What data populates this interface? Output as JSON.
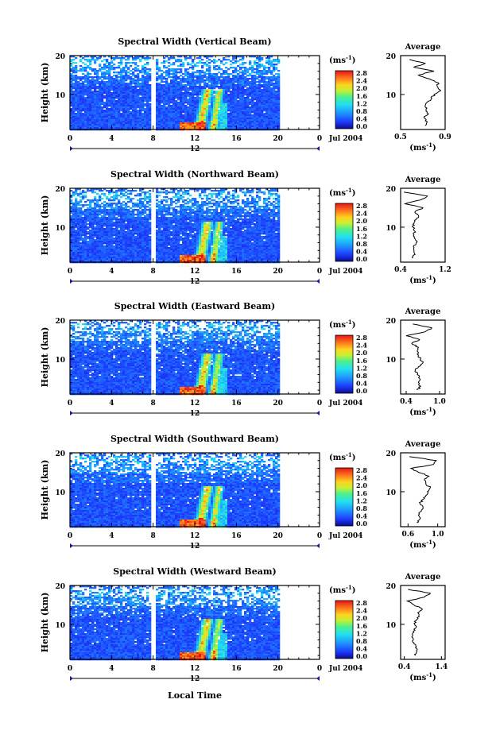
{
  "page": {
    "xlabel": "Local Time",
    "ylabel": "Height (km)",
    "avg_title": "Average",
    "cbar_title": "(ms",
    "cbar_title_exp": "-1",
    "cbar_title_close": ")",
    "avg_unit": "(ms",
    "avg_unit_exp": "-1",
    "avg_unit_close": ")",
    "date_label": "Jul 2004",
    "gap_time_label": "12",
    "x_ticks": [
      "0",
      "4",
      "8",
      "12",
      "16",
      "20",
      "0"
    ],
    "y_ticks": [
      "20",
      "10"
    ],
    "cbar_ticks": [
      "2.8",
      "2.4",
      "2.0",
      "1.6",
      "1.2",
      "0.8",
      "0.4",
      "0.0"
    ]
  },
  "chart_data": [
    {
      "type": "heatmap",
      "title": "Spectral Width (Vertical Beam)",
      "xlabel": "Local Time",
      "ylabel": "Height (km)",
      "xlim": [
        0,
        24
      ],
      "ylim": [
        1,
        20
      ],
      "colorbar": {
        "label": "(ms-1)",
        "range": [
          0,
          3.0
        ],
        "ticks": [
          0.0,
          0.4,
          0.8,
          1.2,
          1.6,
          2.0,
          2.4,
          2.8
        ]
      },
      "data_gap_hour": 8,
      "average_profile": {
        "xlabel": "(ms-1)",
        "xticks": [
          "0.5",
          "0.9"
        ],
        "xlim": [
          0.5,
          0.9
        ],
        "height": [
          2,
          3,
          4,
          5,
          6,
          7,
          8,
          9,
          10,
          11,
          12,
          13,
          14,
          15,
          16,
          17,
          18,
          19
        ],
        "value": [
          0.72,
          0.74,
          0.71,
          0.75,
          0.73,
          0.72,
          0.74,
          0.78,
          0.8,
          0.86,
          0.83,
          0.84,
          0.76,
          0.66,
          0.8,
          0.62,
          0.72,
          0.58
        ]
      }
    },
    {
      "type": "heatmap",
      "title": "Spectral Width (Northward Beam)",
      "xlabel": "Local Time",
      "ylabel": "Height (km)",
      "xlim": [
        0,
        24
      ],
      "ylim": [
        1,
        20
      ],
      "colorbar": {
        "label": "(ms-1)",
        "range": [
          0,
          3.0
        ],
        "ticks": [
          0.0,
          0.4,
          0.8,
          1.2,
          1.6,
          2.0,
          2.4,
          2.8
        ]
      },
      "data_gap_hour": 8,
      "average_profile": {
        "xlabel": "(ms-1)",
        "xticks": [
          "0.4",
          "1.2"
        ],
        "xlim": [
          0.4,
          1.2
        ],
        "height": [
          2,
          3,
          4,
          5,
          6,
          7,
          8,
          9,
          10,
          11,
          12,
          13,
          14,
          15,
          16,
          17,
          18,
          19
        ],
        "value": [
          0.62,
          0.66,
          0.64,
          0.63,
          0.68,
          0.66,
          0.64,
          0.65,
          0.62,
          0.64,
          0.68,
          0.72,
          0.66,
          0.8,
          0.48,
          0.76,
          0.88,
          0.46
        ]
      }
    },
    {
      "type": "heatmap",
      "title": "Spectral Width (Eastward Beam)",
      "xlabel": "Local Time",
      "ylabel": "Height (km)",
      "xlim": [
        0,
        24
      ],
      "ylim": [
        1,
        20
      ],
      "colorbar": {
        "label": "(ms-1)",
        "range": [
          0,
          3.0
        ],
        "ticks": [
          0.0,
          0.4,
          0.8,
          1.2,
          1.6,
          2.0,
          2.4,
          2.8
        ]
      },
      "data_gap_hour": 8,
      "average_profile": {
        "xlabel": "(ms-1)",
        "xticks": [
          "0.4",
          "1.0"
        ],
        "xlim": [
          0.3,
          1.1
        ],
        "height": [
          2,
          3,
          4,
          5,
          6,
          7,
          8,
          9,
          10,
          11,
          12,
          13,
          14,
          15,
          16,
          17,
          18,
          19
        ],
        "value": [
          0.6,
          0.66,
          0.62,
          0.64,
          0.6,
          0.56,
          0.62,
          0.7,
          0.66,
          0.62,
          0.6,
          0.62,
          0.5,
          0.64,
          0.4,
          0.74,
          0.86,
          0.52
        ]
      }
    },
    {
      "type": "heatmap",
      "title": "Spectral Width (Southward Beam)",
      "xlabel": "Local Time",
      "ylabel": "Height (km)",
      "xlim": [
        0,
        24
      ],
      "ylim": [
        1,
        20
      ],
      "colorbar": {
        "label": "(ms-1)",
        "range": [
          0,
          3.0
        ],
        "ticks": [
          0.0,
          0.4,
          0.8,
          1.2,
          1.6,
          2.0,
          2.4,
          2.8
        ]
      },
      "data_gap_hour": 8,
      "average_profile": {
        "xlabel": "(ms-1)",
        "xticks": [
          "0.6",
          "1.0"
        ],
        "xlim": [
          0.5,
          1.1
        ],
        "height": [
          2,
          3,
          4,
          5,
          6,
          7,
          8,
          9,
          10,
          11,
          12,
          13,
          14,
          15,
          16,
          17,
          18,
          19
        ],
        "value": [
          0.72,
          0.76,
          0.74,
          0.78,
          0.8,
          0.76,
          0.8,
          0.84,
          0.86,
          0.9,
          0.84,
          0.82,
          0.88,
          0.74,
          0.64,
          0.94,
          0.98,
          0.62
        ]
      }
    },
    {
      "type": "heatmap",
      "title": "Spectral Width (Westward Beam)",
      "xlabel": "Local Time",
      "ylabel": "Height (km)",
      "xlim": [
        0,
        24
      ],
      "ylim": [
        1,
        20
      ],
      "colorbar": {
        "label": "(ms-1)",
        "range": [
          0,
          3.0
        ],
        "ticks": [
          0.0,
          0.4,
          0.8,
          1.2,
          1.6,
          2.0,
          2.4,
          2.8
        ]
      },
      "data_gap_hour": 8,
      "average_profile": {
        "xlabel": "(ms-1)",
        "xticks": [
          "0.4",
          "1.4"
        ],
        "xlim": [
          0.3,
          1.5
        ],
        "height": [
          2,
          3,
          4,
          5,
          6,
          7,
          8,
          9,
          10,
          11,
          12,
          13,
          14,
          15,
          16,
          17,
          18,
          19
        ],
        "value": [
          0.7,
          0.74,
          0.7,
          0.66,
          0.64,
          0.62,
          0.66,
          0.7,
          0.68,
          0.72,
          0.8,
          0.76,
          0.88,
          0.66,
          0.48,
          0.94,
          1.1,
          0.5
        ]
      }
    }
  ]
}
